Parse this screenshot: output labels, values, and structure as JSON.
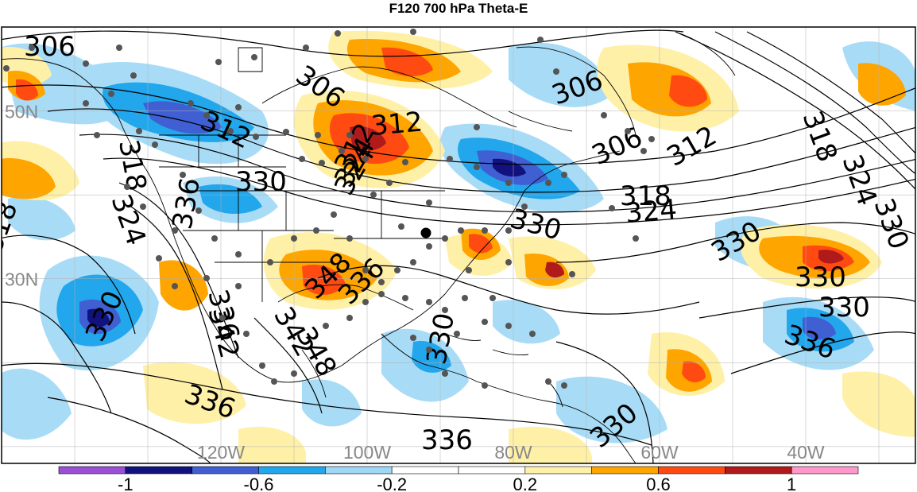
{
  "title": "F120 700 hPa Theta-E",
  "latitude_labels": [
    {
      "text": "50N",
      "lat": 50
    },
    {
      "text": "30N",
      "lat": 30
    }
  ],
  "longitude_labels": [
    {
      "text": "120W",
      "lon": -120
    },
    {
      "text": "100W",
      "lon": -100
    },
    {
      "text": "80W",
      "lon": -80
    },
    {
      "text": "60W",
      "lon": -60
    },
    {
      "text": "40W",
      "lon": -40
    }
  ],
  "contour_labels": [
    "306",
    "306",
    "306",
    "306",
    "312",
    "312",
    "312",
    "312",
    "318",
    "318",
    "318",
    "318",
    "324",
    "324",
    "324",
    "324",
    "324",
    "330",
    "330",
    "330",
    "330",
    "330",
    "330",
    "330",
    "330",
    "330",
    "336",
    "336",
    "336",
    "336",
    "336",
    "342",
    "342",
    "348",
    "348",
    "336"
  ],
  "colorbar": {
    "colors": [
      "#9a4fd6",
      "#12127f",
      "#3f5fd2",
      "#22a6ec",
      "#9fd8f7",
      "#ffffff",
      "#ffffff",
      "#fff0a8",
      "#ffa500",
      "#ff4b12",
      "#b11a1a",
      "#ff99cc"
    ],
    "tick_labels": [
      "-1",
      "-0.6",
      "-0.2",
      "0.2",
      "0.6",
      "1"
    ],
    "tick_values": [
      -1,
      -0.6,
      -0.2,
      0.2,
      0.6,
      1
    ],
    "range": [
      -1.2,
      1.2
    ],
    "interval": 0.2
  },
  "colors": {
    "land_outline": "#000000",
    "contour": "#000000",
    "grid": "#b0b0b0",
    "station": "#555555",
    "highlight_station": "#000000",
    "axis_label": "#888888"
  }
}
